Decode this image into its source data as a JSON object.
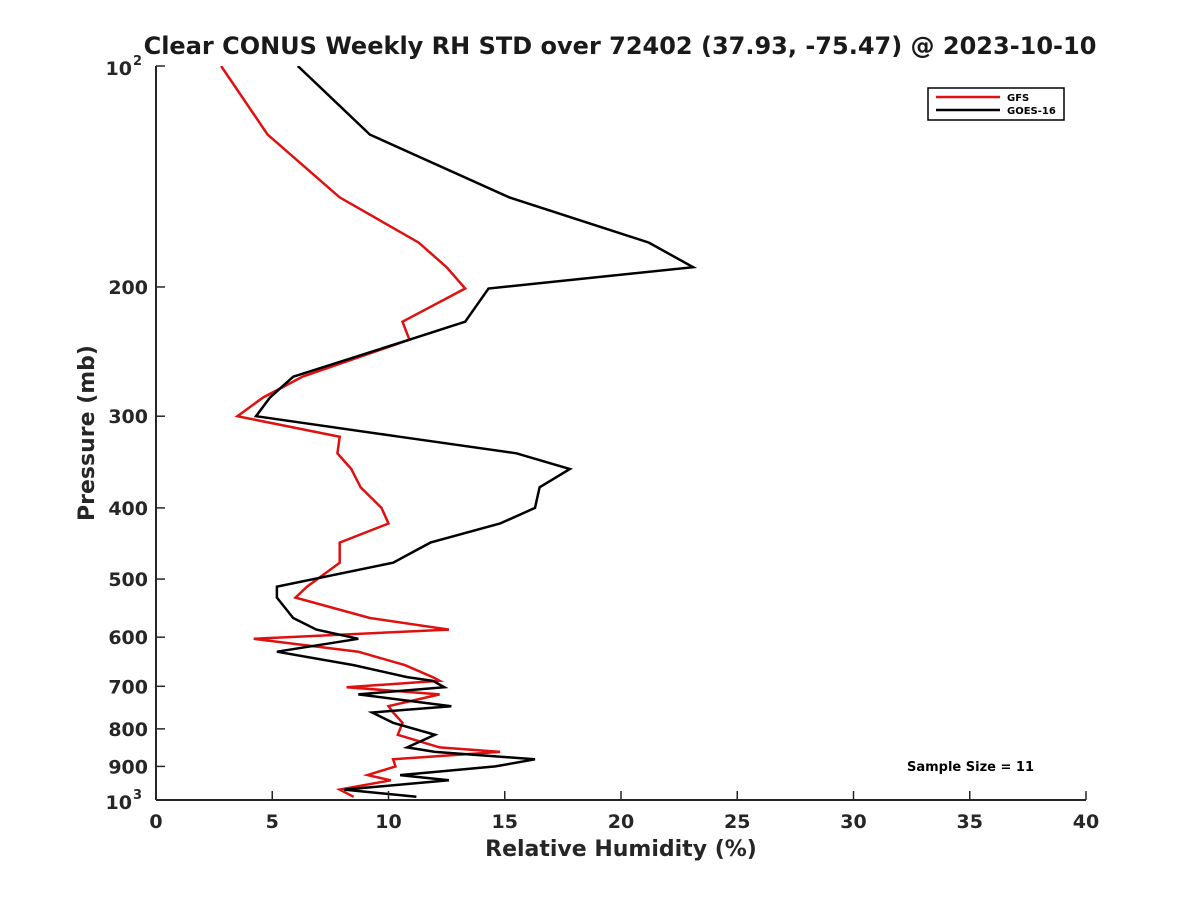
{
  "chart_data": {
    "type": "line",
    "title": "Clear CONUS Weekly RH STD over 72402 (37.93, -75.47) @ 2023-10-10",
    "xlabel": "Relative Humidity (%)",
    "ylabel": "Pressure (mb)",
    "xlim": [
      0,
      40
    ],
    "ylim": [
      100,
      1000
    ],
    "yscale": "log",
    "y_reversed": true,
    "x_ticks": [
      {
        "value": 0,
        "label": "0"
      },
      {
        "value": 5,
        "label": "5"
      },
      {
        "value": 10,
        "label": "10"
      },
      {
        "value": 15,
        "label": "15"
      },
      {
        "value": 20,
        "label": "20"
      },
      {
        "value": 25,
        "label": "25"
      },
      {
        "value": 30,
        "label": "30"
      },
      {
        "value": 35,
        "label": "35"
      },
      {
        "value": 40,
        "label": "40"
      }
    ],
    "y_ticks": [
      {
        "value": 100,
        "base": "10",
        "exp": "2"
      },
      {
        "value": 200,
        "label": "200"
      },
      {
        "value": 300,
        "label": "300"
      },
      {
        "value": 400,
        "label": "400"
      },
      {
        "value": 500,
        "label": "500"
      },
      {
        "value": 600,
        "label": "600"
      },
      {
        "value": 700,
        "label": "700"
      },
      {
        "value": 800,
        "label": "800"
      },
      {
        "value": 900,
        "label": "900"
      },
      {
        "value": 1000,
        "base": "10",
        "exp": "3"
      }
    ],
    "legend_position": "top-right",
    "annotation": "Sample Size = 11",
    "series": [
      {
        "name": "GFS",
        "color": "#e01010",
        "x": [
          2.8,
          4.8,
          7.9,
          11.3,
          12.5,
          13.3,
          10.6,
          10.9,
          6.3,
          4.6,
          3.5,
          7.9,
          7.8,
          8.4,
          8.8,
          9.7,
          10.0,
          7.9,
          7.9,
          6.5,
          6.0,
          9.2,
          12.6,
          4.2,
          8.7,
          10.7,
          11.9,
          12.2,
          8.2,
          12.2,
          10.0,
          10.2,
          10.6,
          10.4,
          12.2,
          14.8,
          10.2,
          10.3,
          9.1,
          10.1,
          7.9,
          8.5
        ],
        "y": [
          100,
          124,
          151,
          174,
          188,
          201,
          223,
          236,
          265,
          283,
          300,
          320,
          337,
          354,
          375,
          400,
          420,
          446,
          475,
          512,
          530,
          565,
          586,
          603,
          628,
          655,
          680,
          688,
          702,
          718,
          745,
          760,
          785,
          815,
          848,
          860,
          880,
          900,
          925,
          940,
          968,
          990
        ]
      },
      {
        "name": "GOES-16",
        "color": "#000000",
        "x": [
          6.1,
          9.2,
          15.2,
          21.2,
          23.1,
          14.3,
          13.3,
          10.9,
          5.9,
          4.9,
          4.3,
          10.5,
          15.5,
          17.8,
          16.5,
          16.3,
          14.8,
          11.8,
          10.2,
          5.2,
          5.2,
          5.9,
          6.9,
          8.7,
          5.2,
          8.5,
          10.8,
          11.9,
          12.4,
          8.7,
          12.7,
          9.3,
          10.2,
          12.0,
          10.8,
          12.0,
          16.3,
          14.6,
          10.5,
          12.6,
          8.1,
          11.2
        ],
        "y": [
          100,
          124,
          151,
          174,
          188,
          201,
          223,
          236,
          265,
          283,
          300,
          320,
          337,
          354,
          375,
          400,
          420,
          446,
          475,
          512,
          530,
          565,
          586,
          603,
          628,
          655,
          680,
          688,
          702,
          718,
          745,
          760,
          785,
          815,
          848,
          860,
          880,
          900,
          925,
          940,
          968,
          990
        ]
      }
    ]
  }
}
